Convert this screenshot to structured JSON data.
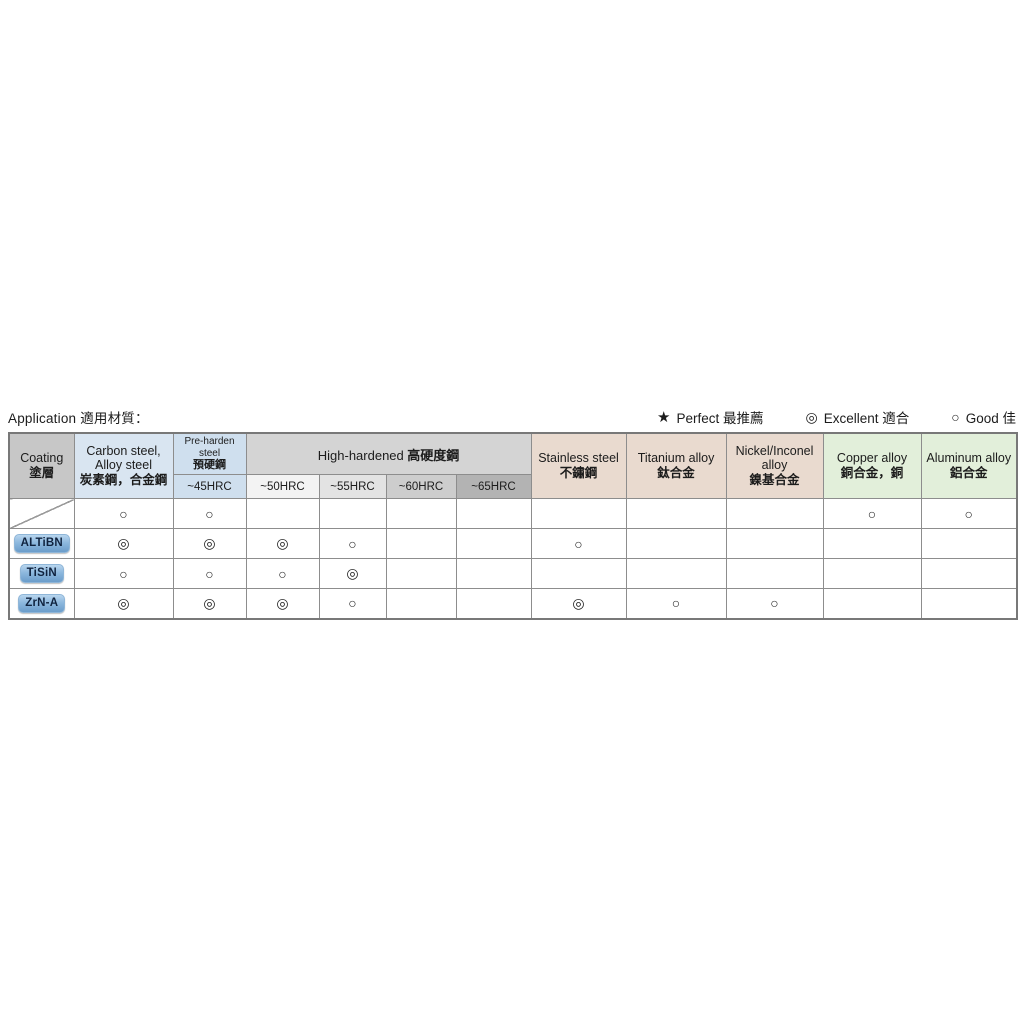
{
  "page": {
    "application_title": "Application 適用材質："
  },
  "legend": {
    "perfect": {
      "symbol": "★",
      "label": "Perfect 最推薦"
    },
    "excellent": {
      "symbol": "◎",
      "label": "Excellent 適合"
    },
    "good": {
      "symbol": "○",
      "label": "Good 佳"
    }
  },
  "table_header": {
    "coating": {
      "en": "Coating",
      "zh": "塗層"
    },
    "carbon": {
      "l1": "Carbon steel,",
      "l2": "Alloy steel",
      "l3": "炭素鋼，合金鋼"
    },
    "preharden": {
      "l1": "Pre-harden steel",
      "l2": "預硬鋼",
      "hrc": "~45HRC"
    },
    "high_hardened": {
      "en": "High-hardened",
      "zh": "高硬度鋼",
      "sub": [
        "~50HRC",
        "~55HRC",
        "~60HRC",
        "~65HRC"
      ]
    },
    "stainless": {
      "l1": "Stainless steel",
      "l2": "不鏽鋼"
    },
    "titanium": {
      "l1": "Titanium alloy",
      "l2": "鈦合金"
    },
    "nickel": {
      "l1": "Nickel/Inconel",
      "l2": "alloy",
      "l3": "鎳基合金"
    },
    "copper": {
      "l1": "Copper alloy",
      "l2": "銅合金，銅"
    },
    "aluminum": {
      "l1": "Aluminum alloy",
      "l2": "鋁合金"
    }
  },
  "rating_columns": [
    "carbon_alloy_steel",
    "preharden_45hrc",
    "hh_50hrc",
    "hh_55hrc",
    "hh_60hrc",
    "hh_65hrc",
    "stainless_steel",
    "titanium_alloy",
    "nickel_inconel_alloy",
    "copper_alloy",
    "aluminum_alloy"
  ],
  "rows": [
    {
      "coating": "",
      "diagonal": true,
      "cells": [
        "○",
        "○",
        "",
        "",
        "",
        "",
        "",
        "",
        "",
        "○",
        "○"
      ]
    },
    {
      "coating": "ALTiBN",
      "diagonal": false,
      "cells": [
        "◎",
        "◎",
        "◎",
        "○",
        "",
        "",
        "○",
        "",
        "",
        "",
        ""
      ]
    },
    {
      "coating": "TiSiN",
      "diagonal": false,
      "cells": [
        "○",
        "○",
        "○",
        "◎",
        "",
        "",
        "",
        "",
        "",
        "",
        ""
      ]
    },
    {
      "coating": "ZrN-A",
      "diagonal": false,
      "cells": [
        "◎",
        "◎",
        "◎",
        "○",
        "",
        "",
        "◎",
        "○",
        "○",
        "",
        ""
      ]
    }
  ],
  "colors": {
    "coating_header_bg": "#c7c7c7",
    "steel_blue_bg": "#d9e5f1",
    "preharden_blue_bg": "#cfdfee",
    "high_hardened_bg": "#d4d4d4",
    "hrc50_bg": "#f3f3f3",
    "hrc55_bg": "#e3e3e3",
    "hrc60_bg": "#cdcdcd",
    "hrc65_bg": "#b3b3b3",
    "warm_header_bg": "#e9dacf",
    "green_header_bg": "#e2efda",
    "badge_blue": "#6b9cca"
  }
}
